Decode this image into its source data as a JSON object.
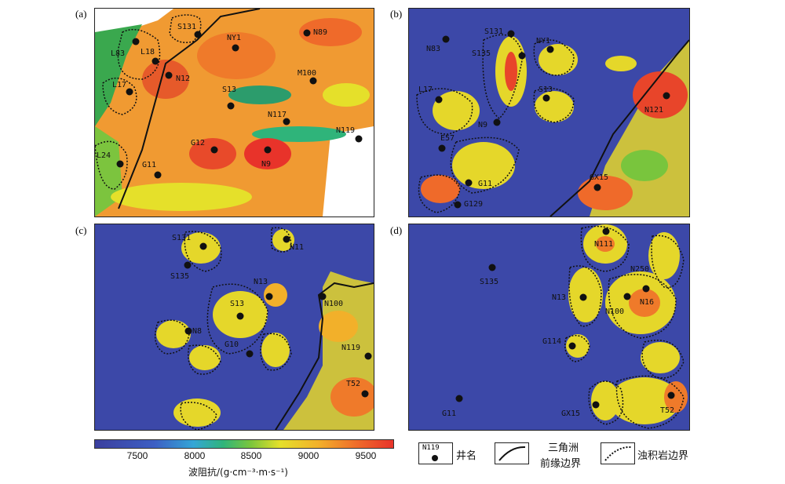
{
  "panels": {
    "a": {
      "label": "(a)",
      "wells": [
        "S131",
        "NY1",
        "N89",
        "L83",
        "L18",
        "N12",
        "L17",
        "M100",
        "S13",
        "N117",
        "N119",
        "G12",
        "N9",
        "L24",
        "G11"
      ]
    },
    "b": {
      "label": "(b)",
      "wells": [
        "S131",
        "N83",
        "NY1",
        "S135",
        "L17",
        "S13",
        "N121",
        "N9",
        "E57",
        "G11",
        "GX15",
        "G129"
      ]
    },
    "c": {
      "label": "(c)",
      "wells": [
        "S131",
        "N11",
        "S135",
        "N13",
        "S13",
        "N100",
        "N8",
        "G10",
        "N119",
        "T52"
      ]
    },
    "d": {
      "label": "(d)",
      "wells": [
        "N111",
        "S135",
        "N250",
        "N13",
        "N16",
        "N100",
        "G114",
        "G11",
        "GX15",
        "T52"
      ]
    }
  },
  "colorbar": {
    "ticks": [
      "7500",
      "8000",
      "8500",
      "9000",
      "9500"
    ],
    "title": "波阻抗/(g·cm⁻³·m·s⁻¹)",
    "min": 7150,
    "max": 9750,
    "colors": [
      "#3b3f9e",
      "#3d5fc4",
      "#34a6d6",
      "#2fb47a",
      "#79c53d",
      "#e5e02a",
      "#f2b02a",
      "#ef6a2a",
      "#e8332a"
    ]
  },
  "legend": {
    "well_sample": "N119",
    "well_text": "井名",
    "delta_text_1": "三角洲",
    "delta_text_2": "前缘边界",
    "turbidite_text": "浊积岩边界"
  }
}
